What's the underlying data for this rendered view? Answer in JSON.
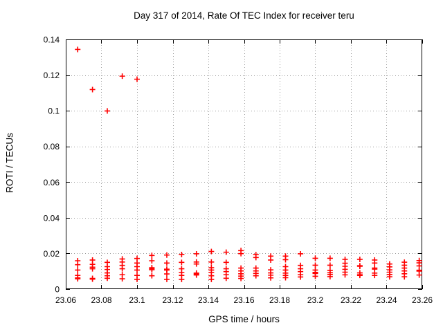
{
  "chart_data": {
    "type": "scatter",
    "title": "Day 317 of 2014, Rate Of TEC Index for receiver teru",
    "xlabel": "GPS time / hours",
    "ylabel": "ROTI / TECUs",
    "xlim": [
      23.06,
      23.26
    ],
    "ylim": [
      0,
      0.14
    ],
    "xticks": {
      "values": [
        23.06,
        23.08,
        23.1,
        23.12,
        23.14,
        23.16,
        23.18,
        23.2,
        23.22,
        23.24,
        23.26
      ],
      "labels": [
        "23.06",
        "23.08",
        "23.1",
        "23.12",
        "23.14",
        "23.16",
        "23.18",
        "23.2",
        "23.22",
        "23.24",
        "23.26"
      ]
    },
    "yticks": {
      "values": [
        0,
        0.02,
        0.04,
        0.06,
        0.08,
        0.1,
        0.12,
        0.14
      ],
      "labels": [
        "0",
        "0.02",
        "0.04",
        "0.06",
        "0.08",
        "0.1",
        "0.12",
        "0.14"
      ]
    },
    "grid": true,
    "grid_style": "dotted",
    "legend": "none",
    "marker": {
      "shape": "plus",
      "color": "#ff0000",
      "size": 8
    },
    "colors": {
      "axis": "#000000",
      "grid": "#9b9b9b",
      "text": "#000000",
      "background": "#ffffff"
    },
    "series": [
      {
        "name": "ROTI",
        "points": [
          [
            23.0667,
            0.1344
          ],
          [
            23.075,
            0.1119
          ],
          [
            23.0833,
            0.0999
          ],
          [
            23.0917,
            0.1194
          ],
          [
            23.1,
            0.1177
          ],
          [
            23.0667,
            0.0159
          ],
          [
            23.0667,
            0.0137
          ],
          [
            23.0667,
            0.0107
          ],
          [
            23.0667,
            0.0077
          ],
          [
            23.0667,
            0.0063
          ],
          [
            23.0667,
            0.0058
          ],
          [
            23.075,
            0.0163
          ],
          [
            23.075,
            0.0139
          ],
          [
            23.075,
            0.0123
          ],
          [
            23.075,
            0.0114
          ],
          [
            23.075,
            0.006
          ],
          [
            23.075,
            0.0056
          ],
          [
            23.0833,
            0.015
          ],
          [
            23.0833,
            0.0126
          ],
          [
            23.0833,
            0.011
          ],
          [
            23.0833,
            0.0091
          ],
          [
            23.0833,
            0.0075
          ],
          [
            23.0833,
            0.0061
          ],
          [
            23.0917,
            0.0169
          ],
          [
            23.0917,
            0.0152
          ],
          [
            23.0917,
            0.0133
          ],
          [
            23.0917,
            0.0114
          ],
          [
            23.0917,
            0.0081
          ],
          [
            23.0917,
            0.0058
          ],
          [
            23.1,
            0.0172
          ],
          [
            23.1,
            0.0146
          ],
          [
            23.1,
            0.0126
          ],
          [
            23.1,
            0.0107
          ],
          [
            23.1,
            0.0077
          ],
          [
            23.1,
            0.0055
          ],
          [
            23.1083,
            0.0189
          ],
          [
            23.1083,
            0.0159
          ],
          [
            23.1083,
            0.012
          ],
          [
            23.1083,
            0.0114
          ],
          [
            23.1083,
            0.0109
          ],
          [
            23.1083,
            0.0075
          ],
          [
            23.1167,
            0.0191
          ],
          [
            23.1167,
            0.0146
          ],
          [
            23.1167,
            0.0112
          ],
          [
            23.1167,
            0.0107
          ],
          [
            23.1167,
            0.0085
          ],
          [
            23.1167,
            0.0055
          ],
          [
            23.125,
            0.0194
          ],
          [
            23.125,
            0.015
          ],
          [
            23.125,
            0.0114
          ],
          [
            23.125,
            0.0094
          ],
          [
            23.125,
            0.0077
          ],
          [
            23.125,
            0.0055
          ],
          [
            23.1333,
            0.0198
          ],
          [
            23.1333,
            0.0152
          ],
          [
            23.1333,
            0.0141
          ],
          [
            23.1333,
            0.009
          ],
          [
            23.1333,
            0.0084
          ],
          [
            23.1333,
            0.0079
          ],
          [
            23.1417,
            0.0211
          ],
          [
            23.1417,
            0.0152
          ],
          [
            23.1417,
            0.012
          ],
          [
            23.1417,
            0.0107
          ],
          [
            23.1417,
            0.0094
          ],
          [
            23.1417,
            0.0075
          ],
          [
            23.1417,
            0.0055
          ],
          [
            23.15,
            0.0207
          ],
          [
            23.15,
            0.015
          ],
          [
            23.15,
            0.0114
          ],
          [
            23.15,
            0.0098
          ],
          [
            23.15,
            0.0081
          ],
          [
            23.15,
            0.0061
          ],
          [
            23.1583,
            0.0216
          ],
          [
            23.1583,
            0.0199
          ],
          [
            23.1583,
            0.0118
          ],
          [
            23.1583,
            0.0102
          ],
          [
            23.1583,
            0.0086
          ],
          [
            23.1583,
            0.0073
          ],
          [
            23.1583,
            0.006
          ],
          [
            23.1667,
            0.0193
          ],
          [
            23.1667,
            0.0177
          ],
          [
            23.1667,
            0.0118
          ],
          [
            23.1667,
            0.0102
          ],
          [
            23.1667,
            0.0088
          ],
          [
            23.1667,
            0.0075
          ],
          [
            23.175,
            0.0185
          ],
          [
            23.175,
            0.0163
          ],
          [
            23.175,
            0.0108
          ],
          [
            23.175,
            0.0091
          ],
          [
            23.175,
            0.0078
          ],
          [
            23.175,
            0.0063
          ],
          [
            23.1833,
            0.0185
          ],
          [
            23.1833,
            0.0165
          ],
          [
            23.1833,
            0.0126
          ],
          [
            23.1833,
            0.0107
          ],
          [
            23.1833,
            0.009
          ],
          [
            23.1833,
            0.0077
          ],
          [
            23.1833,
            0.0064
          ],
          [
            23.1917,
            0.0198
          ],
          [
            23.1917,
            0.0133
          ],
          [
            23.1917,
            0.0114
          ],
          [
            23.1917,
            0.0098
          ],
          [
            23.1917,
            0.0081
          ],
          [
            23.1917,
            0.0068
          ],
          [
            23.2,
            0.0173
          ],
          [
            23.2,
            0.0134
          ],
          [
            23.2,
            0.0107
          ],
          [
            23.2,
            0.0094
          ],
          [
            23.2,
            0.0088
          ],
          [
            23.2,
            0.0072
          ],
          [
            23.2083,
            0.0173
          ],
          [
            23.2083,
            0.0134
          ],
          [
            23.2083,
            0.0105
          ],
          [
            23.2083,
            0.0092
          ],
          [
            23.2083,
            0.0082
          ],
          [
            23.2083,
            0.007
          ],
          [
            23.2167,
            0.0167
          ],
          [
            23.2167,
            0.0145
          ],
          [
            23.2167,
            0.0128
          ],
          [
            23.2167,
            0.0111
          ],
          [
            23.2167,
            0.0095
          ],
          [
            23.2167,
            0.008
          ],
          [
            23.225,
            0.0167
          ],
          [
            23.225,
            0.0131
          ],
          [
            23.225,
            0.0128
          ],
          [
            23.225,
            0.0091
          ],
          [
            23.225,
            0.0081
          ],
          [
            23.225,
            0.0077
          ],
          [
            23.2333,
            0.0163
          ],
          [
            23.2333,
            0.0146
          ],
          [
            23.2333,
            0.0118
          ],
          [
            23.2333,
            0.0112
          ],
          [
            23.2333,
            0.009
          ],
          [
            23.2333,
            0.0077
          ],
          [
            23.2417,
            0.0141
          ],
          [
            23.2417,
            0.0125
          ],
          [
            23.2417,
            0.0108
          ],
          [
            23.2417,
            0.0095
          ],
          [
            23.2417,
            0.0082
          ],
          [
            23.2417,
            0.0069
          ],
          [
            23.25,
            0.0151
          ],
          [
            23.25,
            0.0134
          ],
          [
            23.25,
            0.0118
          ],
          [
            23.25,
            0.0102
          ],
          [
            23.25,
            0.0086
          ],
          [
            23.25,
            0.0069
          ],
          [
            23.2583,
            0.016
          ],
          [
            23.2583,
            0.0147
          ],
          [
            23.2583,
            0.013
          ],
          [
            23.2583,
            0.0106
          ],
          [
            23.2583,
            0.0101
          ],
          [
            23.2583,
            0.0079
          ]
        ]
      }
    ]
  }
}
